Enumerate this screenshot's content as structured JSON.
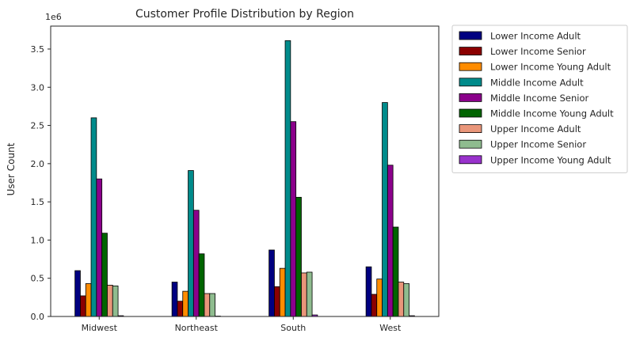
{
  "chart_data": {
    "type": "bar",
    "title": "Customer Profile Distribution by Region",
    "xlabel": "",
    "ylabel": "User Count",
    "scale_label": "1e6",
    "categories": [
      "Midwest",
      "Northeast",
      "South",
      "West"
    ],
    "ylim": [
      0,
      3.8
    ],
    "yticks": [
      0.0,
      0.5,
      1.0,
      1.5,
      2.0,
      2.5,
      3.0,
      3.5
    ],
    "ytick_labels": [
      "0.0",
      "0.5",
      "1.0",
      "1.5",
      "2.0",
      "2.5",
      "3.0",
      "3.5"
    ],
    "grid": false,
    "legend_position": "outside-right-top",
    "series": [
      {
        "name": "Lower Income Adult",
        "color": "#000080",
        "values": [
          0.6,
          0.45,
          0.87,
          0.65
        ]
      },
      {
        "name": "Lower Income Senior",
        "color": "#8b0000",
        "values": [
          0.27,
          0.2,
          0.39,
          0.29
        ]
      },
      {
        "name": "Lower Income Young Adult",
        "color": "#ff8c00",
        "values": [
          0.43,
          0.33,
          0.63,
          0.49
        ]
      },
      {
        "name": "Middle Income Adult",
        "color": "#008b8b",
        "values": [
          2.6,
          1.91,
          3.61,
          2.8
        ]
      },
      {
        "name": "Middle Income Senior",
        "color": "#8b008b",
        "values": [
          1.8,
          1.39,
          2.55,
          1.98
        ]
      },
      {
        "name": "Middle Income Young Adult",
        "color": "#006400",
        "values": [
          1.09,
          0.82,
          1.56,
          1.17
        ]
      },
      {
        "name": "Upper Income Adult",
        "color": "#e9967a",
        "values": [
          0.41,
          0.3,
          0.57,
          0.45
        ]
      },
      {
        "name": "Upper Income Senior",
        "color": "#8fbc8f",
        "values": [
          0.4,
          0.3,
          0.58,
          0.43
        ]
      },
      {
        "name": "Upper Income Young Adult",
        "color": "#9932cc",
        "values": [
          0.01,
          0.005,
          0.02,
          0.01
        ]
      }
    ]
  }
}
